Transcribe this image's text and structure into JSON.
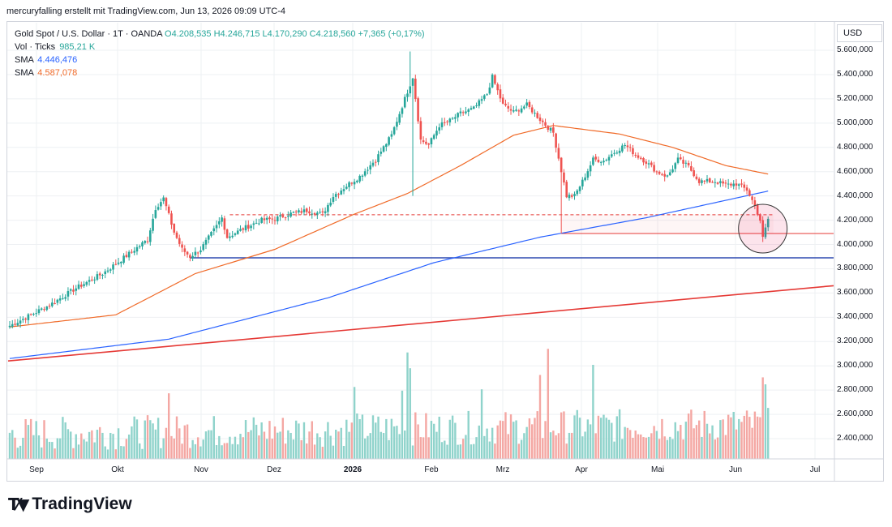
{
  "attribution": "mercuryfalling erstellt mit TradingView.com, Jun 13, 2026 09:09 UTC-4",
  "legend": {
    "symbol": "Gold Spot / U.S. Dollar · 1T · OANDA",
    "ohlc": "O4.208,535  H4.246,715  L4.170,290  C4.218,560  +7,365 (+0,17%)",
    "vol_label": "Vol · Ticks",
    "vol_value": "985,21 K",
    "sma1_label": "SMA",
    "sma1_value": "4.446,476",
    "sma2_label": "SMA",
    "sma2_value": "4.587,078"
  },
  "currency": "USD",
  "brand": "TradingView",
  "colors": {
    "up": "#26a69a",
    "down": "#ef5350",
    "vol_up": "#8fd3cb",
    "vol_down": "#f4a7a3",
    "sma1": "#2962ff",
    "sma2": "#f06a28",
    "trendline": "#e53935",
    "support": "#2e4ab0"
  },
  "chart_data": {
    "type": "candlestick",
    "ylim": [
      3000,
      5660
    ],
    "yticks": [
      "5.600,000",
      "5.400,000",
      "5.200,000",
      "5.000,000",
      "4.800,000",
      "4.600,000",
      "4.400,000",
      "4.200,000",
      "4.000,000",
      "3.800,000",
      "3.600,000",
      "3.400,000",
      "3.200,000",
      "3.000,000",
      "2.800,000",
      "2.600,000",
      "2.400,000"
    ],
    "months": [
      "Sep",
      "Okt",
      "Nov",
      "Dez",
      "2026",
      "Feb",
      "Mrz",
      "Apr",
      "Mai",
      "Jun",
      "Jul"
    ],
    "price_anchors": [
      [
        0,
        3330
      ],
      [
        15,
        3500
      ],
      [
        25,
        3640
      ],
      [
        35,
        3760
      ],
      [
        40,
        3840
      ],
      [
        52,
        4040
      ],
      [
        55,
        4300
      ],
      [
        58,
        4380
      ],
      [
        62,
        4100
      ],
      [
        65,
        3960
      ],
      [
        68,
        3900
      ],
      [
        72,
        3960
      ],
      [
        78,
        4150
      ],
      [
        80,
        4220
      ],
      [
        82,
        4060
      ],
      [
        88,
        4130
      ],
      [
        95,
        4200
      ],
      [
        100,
        4210
      ],
      [
        105,
        4250
      ],
      [
        112,
        4280
      ],
      [
        118,
        4250
      ],
      [
        122,
        4400
      ],
      [
        128,
        4500
      ],
      [
        132,
        4560
      ],
      [
        138,
        4700
      ],
      [
        144,
        4900
      ],
      [
        152,
        5380
      ],
      [
        155,
        4860
      ],
      [
        158,
        4820
      ],
      [
        162,
        4980
      ],
      [
        166,
        5020
      ],
      [
        170,
        5080
      ],
      [
        175,
        5120
      ],
      [
        180,
        5240
      ],
      [
        182,
        5380
      ],
      [
        186,
        5150
      ],
      [
        190,
        5090
      ],
      [
        195,
        5150
      ],
      [
        200,
        5030
      ],
      [
        205,
        4920
      ],
      [
        210,
        4400
      ],
      [
        213,
        4400
      ],
      [
        216,
        4520
      ],
      [
        220,
        4700
      ],
      [
        224,
        4690
      ],
      [
        228,
        4760
      ],
      [
        232,
        4820
      ],
      [
        236,
        4740
      ],
      [
        240,
        4680
      ],
      [
        244,
        4600
      ],
      [
        248,
        4560
      ],
      [
        252,
        4700
      ],
      [
        256,
        4640
      ],
      [
        260,
        4520
      ],
      [
        266,
        4520
      ],
      [
        270,
        4490
      ],
      [
        274,
        4500
      ],
      [
        278,
        4450
      ],
      [
        281,
        4320
      ],
      [
        283,
        4200
      ],
      [
        284,
        4050
      ],
      [
        286,
        4210
      ]
    ],
    "sma_fast_anchors": [
      [
        0,
        3060
      ],
      [
        60,
        3220
      ],
      [
        120,
        3560
      ],
      [
        160,
        3850
      ],
      [
        200,
        4060
      ],
      [
        240,
        4220
      ],
      [
        286,
        4440
      ]
    ],
    "sma_slow_anchors": [
      [
        0,
        3320
      ],
      [
        40,
        3420
      ],
      [
        70,
        3760
      ],
      [
        100,
        3960
      ],
      [
        130,
        4250
      ],
      [
        150,
        4420
      ],
      [
        170,
        4650
      ],
      [
        190,
        4900
      ],
      [
        205,
        4980
      ],
      [
        230,
        4910
      ],
      [
        250,
        4800
      ],
      [
        270,
        4650
      ],
      [
        286,
        4580
      ]
    ],
    "trendline": {
      "from": [
        0,
        3040
      ],
      "to": [
        312,
        3660
      ]
    },
    "support_level": 3890,
    "resistance_dashed": 4245,
    "low_marker": 4090,
    "volume_yrange": [
      2220,
      3220
    ]
  }
}
